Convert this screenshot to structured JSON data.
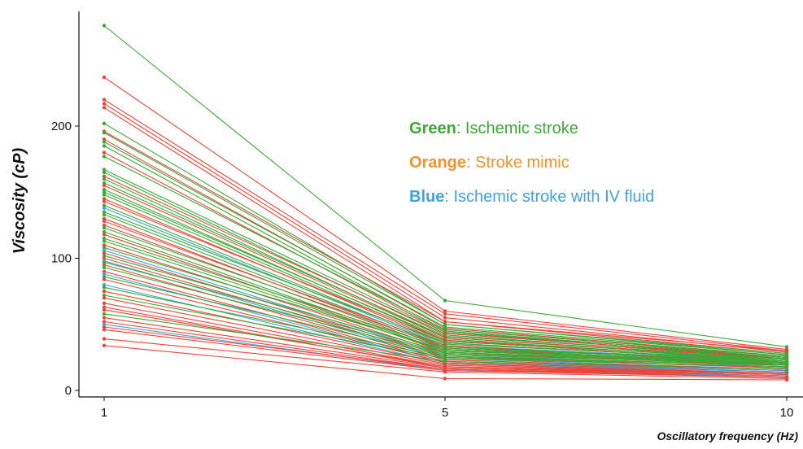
{
  "chart_data": {
    "type": "line",
    "title": "",
    "xlabel": "Oscillatory frequency (Hz)",
    "ylabel": "Viscosity (cP)",
    "x": [
      1,
      5,
      10
    ],
    "x_tick_labels": [
      "1",
      "5",
      "10"
    ],
    "y_ticks": [
      0,
      100,
      200
    ],
    "y_tick_labels": [
      "0",
      "100",
      "200"
    ],
    "ylim": [
      -5,
      285
    ],
    "grid": false,
    "legend": {
      "placement": "top-right",
      "entries": [
        {
          "key": "Green",
          "sep": ": ",
          "text": "Ischemic stroke",
          "color": "#3aaa35"
        },
        {
          "key": "Orange",
          "sep": ": ",
          "text": "Stroke mimic",
          "color": "#f0932b"
        },
        {
          "key": "Blue",
          "sep": ": ",
          "text": "Ischemic stroke with IV fluid",
          "color": "#3fa3dc"
        }
      ]
    },
    "colors": {
      "green": "#3aaa35",
      "red": "#e8453c",
      "blue": "#3fa3dc"
    },
    "series": [
      {
        "color": "green",
        "values": [
          276,
          68,
          33
        ]
      },
      {
        "color": "red",
        "values": [
          237,
          60,
          31
        ]
      },
      {
        "color": "red",
        "values": [
          220,
          58,
          30
        ]
      },
      {
        "color": "red",
        "values": [
          217,
          55,
          29
        ]
      },
      {
        "color": "red",
        "values": [
          214,
          52,
          28
        ]
      },
      {
        "color": "green",
        "values": [
          202,
          50,
          28
        ]
      },
      {
        "color": "red",
        "values": [
          196,
          52,
          30
        ]
      },
      {
        "color": "green",
        "values": [
          195,
          50,
          27
        ]
      },
      {
        "color": "red",
        "values": [
          190,
          47,
          26
        ]
      },
      {
        "color": "green",
        "values": [
          188,
          48,
          27
        ]
      },
      {
        "color": "green",
        "values": [
          185,
          45,
          25
        ]
      },
      {
        "color": "red",
        "values": [
          180,
          44,
          24
        ]
      },
      {
        "color": "green",
        "values": [
          177,
          46,
          26
        ]
      },
      {
        "color": "green",
        "values": [
          167,
          44,
          26
        ]
      },
      {
        "color": "green",
        "values": [
          165,
          42,
          24
        ]
      },
      {
        "color": "red",
        "values": [
          162,
          43,
          25
        ]
      },
      {
        "color": "green",
        "values": [
          160,
          40,
          23
        ]
      },
      {
        "color": "green",
        "values": [
          157,
          41,
          25
        ]
      },
      {
        "color": "red",
        "values": [
          155,
          40,
          24
        ]
      },
      {
        "color": "green",
        "values": [
          152,
          38,
          23
        ]
      },
      {
        "color": "green",
        "values": [
          150,
          39,
          22
        ]
      },
      {
        "color": "green",
        "values": [
          148,
          37,
          24
        ]
      },
      {
        "color": "red",
        "values": [
          145,
          36,
          22
        ]
      },
      {
        "color": "red",
        "values": [
          143,
          38,
          21
        ]
      },
      {
        "color": "green",
        "values": [
          140,
          35,
          23
        ]
      },
      {
        "color": "blue",
        "values": [
          138,
          34,
          22
        ]
      },
      {
        "color": "green",
        "values": [
          135,
          36,
          22
        ]
      },
      {
        "color": "green",
        "values": [
          133,
          33,
          21
        ]
      },
      {
        "color": "red",
        "values": [
          130,
          32,
          20
        ]
      },
      {
        "color": "red",
        "values": [
          128,
          34,
          20
        ]
      },
      {
        "color": "red",
        "values": [
          125,
          31,
          19
        ]
      },
      {
        "color": "green",
        "values": [
          123,
          33,
          22
        ]
      },
      {
        "color": "green",
        "values": [
          120,
          30,
          21
        ]
      },
      {
        "color": "red",
        "values": [
          118,
          29,
          19
        ]
      },
      {
        "color": "green",
        "values": [
          115,
          32,
          22
        ]
      },
      {
        "color": "green",
        "values": [
          113,
          30,
          20
        ]
      },
      {
        "color": "red",
        "values": [
          110,
          28,
          19
        ]
      },
      {
        "color": "green",
        "values": [
          108,
          31,
          21
        ]
      },
      {
        "color": "blue",
        "values": [
          106,
          27,
          18
        ]
      },
      {
        "color": "red",
        "values": [
          104,
          26,
          17
        ]
      },
      {
        "color": "green",
        "values": [
          102,
          29,
          20
        ]
      },
      {
        "color": "red",
        "values": [
          100,
          25,
          17
        ]
      },
      {
        "color": "blue",
        "values": [
          98,
          24,
          16
        ]
      },
      {
        "color": "green",
        "values": [
          97,
          28,
          21
        ]
      },
      {
        "color": "red",
        "values": [
          95,
          23,
          16
        ]
      },
      {
        "color": "green",
        "values": [
          93,
          27,
          20
        ]
      },
      {
        "color": "red",
        "values": [
          90,
          22,
          15
        ]
      },
      {
        "color": "blue",
        "values": [
          88,
          21,
          15
        ]
      },
      {
        "color": "green",
        "values": [
          86,
          26,
          19
        ]
      },
      {
        "color": "red",
        "values": [
          84,
          21,
          14
        ]
      },
      {
        "color": "blue",
        "values": [
          80,
          20,
          14
        ]
      },
      {
        "color": "green",
        "values": [
          78,
          25,
          19
        ]
      },
      {
        "color": "red",
        "values": [
          75,
          20,
          13
        ]
      },
      {
        "color": "green",
        "values": [
          72,
          24,
          18
        ]
      },
      {
        "color": "red",
        "values": [
          70,
          19,
          13
        ]
      },
      {
        "color": "red",
        "values": [
          66,
          18,
          12
        ]
      },
      {
        "color": "red",
        "values": [
          63,
          17,
          12
        ]
      },
      {
        "color": "red",
        "values": [
          61,
          18,
          13
        ]
      },
      {
        "color": "green",
        "values": [
          58,
          22,
          16
        ]
      },
      {
        "color": "red",
        "values": [
          55,
          17,
          11
        ]
      },
      {
        "color": "red",
        "values": [
          52,
          16,
          11
        ]
      },
      {
        "color": "blue",
        "values": [
          50,
          15,
          11
        ]
      },
      {
        "color": "red",
        "values": [
          48,
          16,
          10
        ]
      },
      {
        "color": "red",
        "values": [
          46,
          15,
          10
        ]
      },
      {
        "color": "red",
        "values": [
          39,
          14,
          9
        ]
      },
      {
        "color": "red",
        "values": [
          34,
          9,
          8
        ]
      }
    ]
  }
}
